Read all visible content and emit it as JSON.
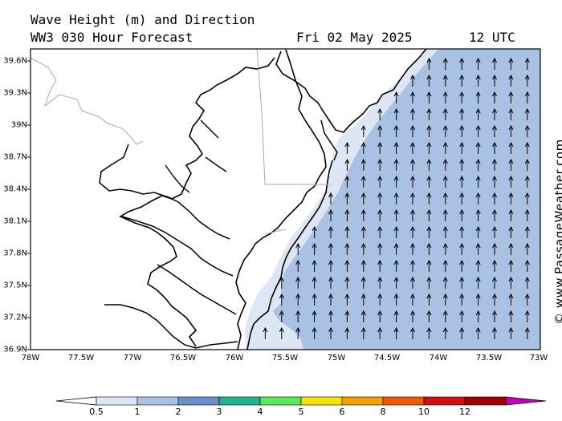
{
  "header": {
    "title": "Wave Height (m) and Direction",
    "forecast": "WW3 030 Hour Forecast",
    "date": "Fri 02 May 2025",
    "time": "12 UTC"
  },
  "map": {
    "lat_ticks": [
      "39.6N",
      "39.3N",
      "39N",
      "38.7N",
      "38.4N",
      "38.1N",
      "37.8N",
      "37.5N",
      "37.2N",
      "36.9N"
    ],
    "lon_ticks": [
      "78W",
      "77.5W",
      "77W",
      "76.5W",
      "76W",
      "75.5W",
      "75W",
      "74.5W",
      "74W",
      "73.5W",
      "73W"
    ],
    "lat_range": [
      36.7,
      39.7
    ],
    "lon_range": [
      -78.0,
      -73.0
    ],
    "wave_direction": "north",
    "colors": {
      "land": "#ffffff",
      "band_0_5_1": "#dde6f4",
      "band_1_2": "#a9c1e2"
    }
  },
  "colorbar": {
    "labels": [
      "0.5",
      "1",
      "2",
      "3",
      "4",
      "5",
      "6",
      "8",
      "10",
      "12"
    ],
    "colors": [
      "#dde6f4",
      "#a9c1e2",
      "#6a8fcb",
      "#22b58b",
      "#5ee85a",
      "#f4e400",
      "#f4a100",
      "#f05a00",
      "#d01010",
      "#a00000",
      "#c000c0"
    ]
  },
  "credit": "© www.PassageWeather.com"
}
